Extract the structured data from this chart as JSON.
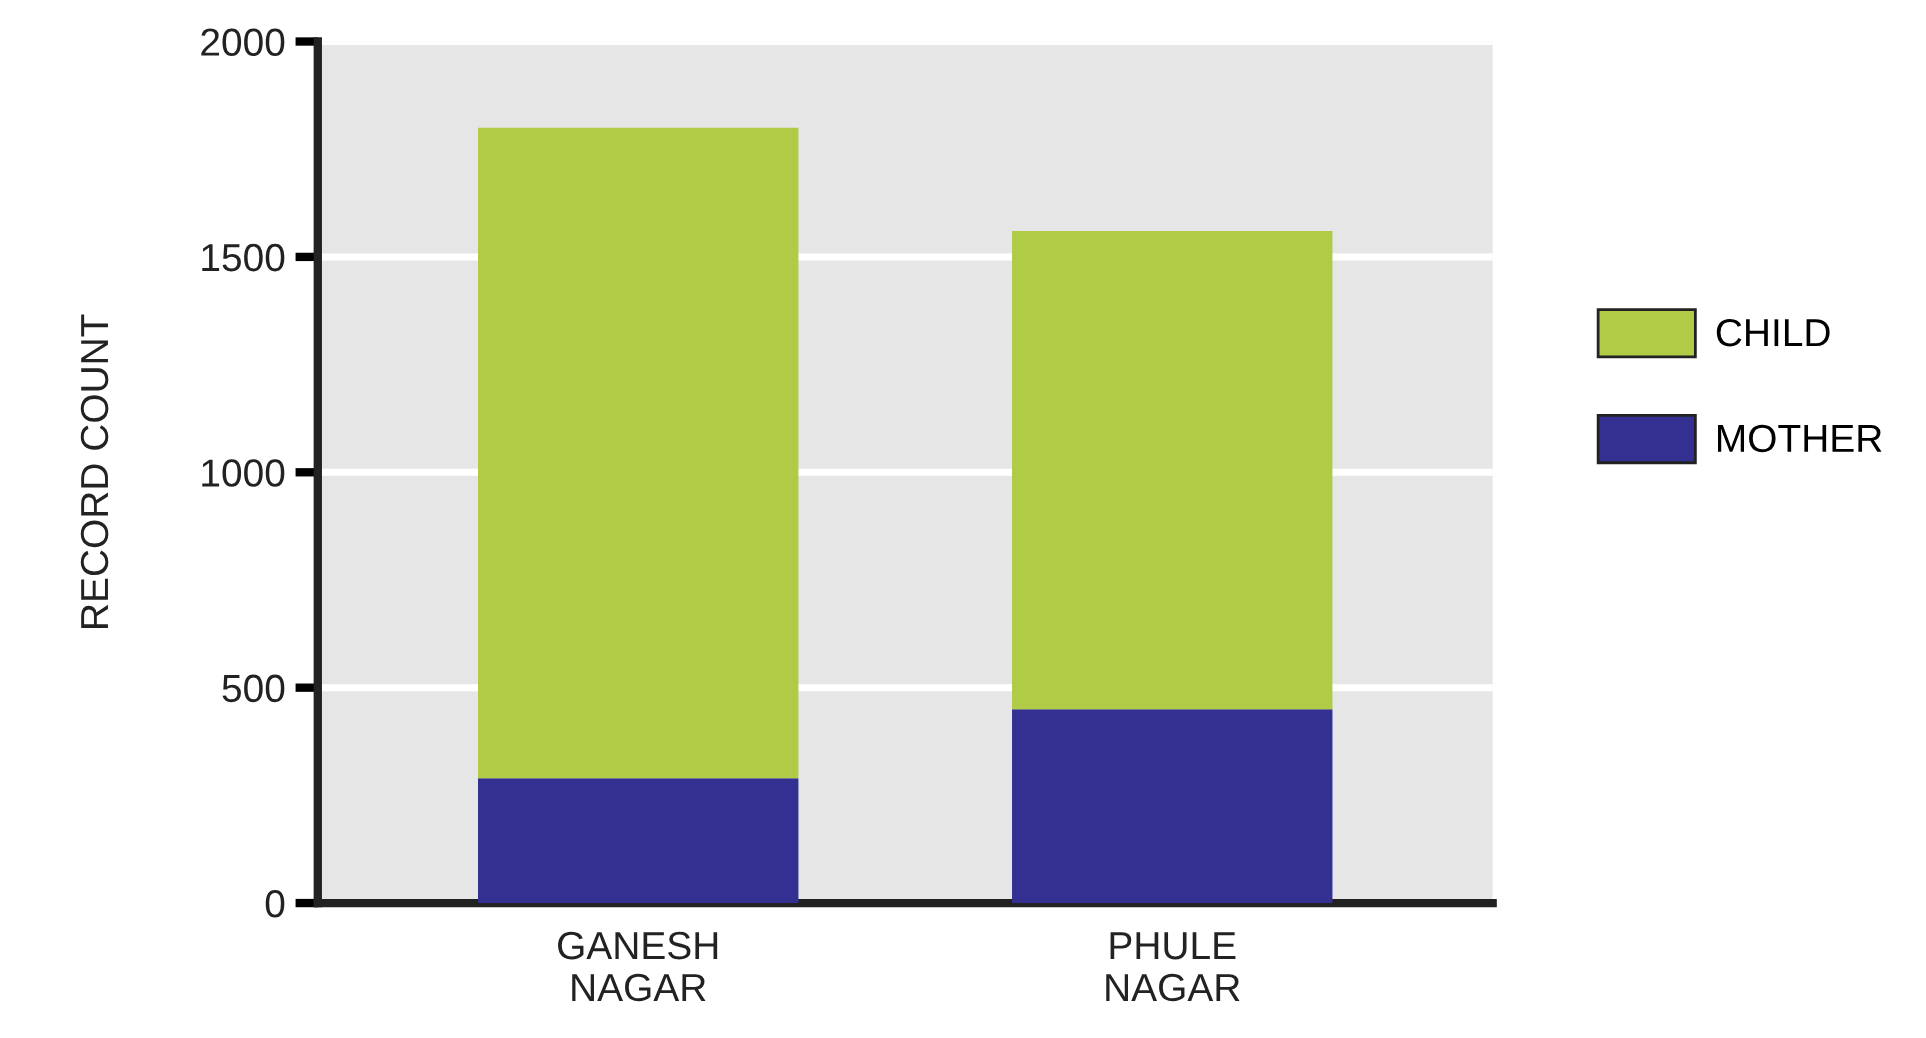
{
  "chart_data": {
    "type": "bar",
    "stacked": true,
    "ylabel": "RECORD COUNT",
    "categories": [
      "GANESH\nNAGAR",
      "PHULE\nNAGAR"
    ],
    "series": [
      {
        "name": "MOTHER",
        "color": "#333092",
        "values": [
          290,
          450
        ]
      },
      {
        "name": "CHILD",
        "color": "#b0cb46",
        "values": [
          1510,
          1110
        ]
      }
    ],
    "ylim": [
      0,
      2000
    ],
    "yticks": [
      0,
      500,
      1000,
      1500,
      2000
    ],
    "grid": "y",
    "legend": "right"
  }
}
